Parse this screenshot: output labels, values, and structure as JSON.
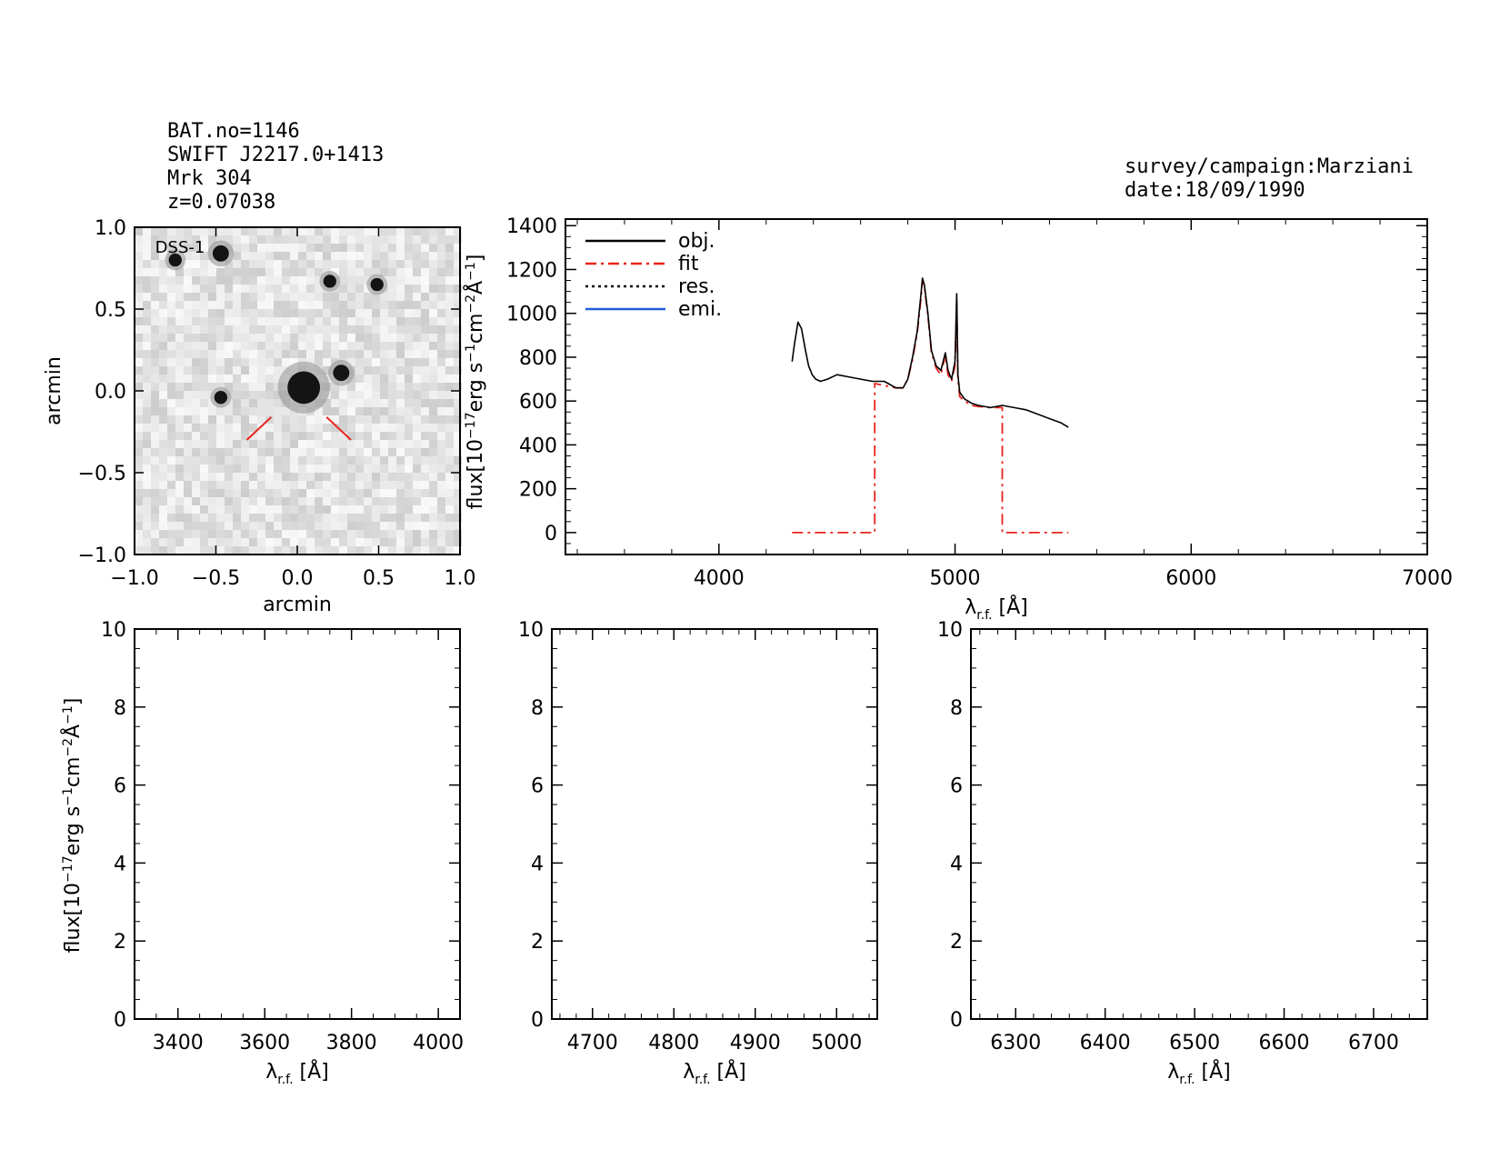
{
  "header": {
    "lines": [
      "BAT.no=1146",
      "SWIFT J2217.0+1413",
      "Mrk 304",
      "z=0.07038"
    ],
    "survey": "survey/campaign:Marziani",
    "date": "date:18/09/1990"
  },
  "colors": {
    "obj": "#000000",
    "fit": "#e8241c",
    "res": "#000000",
    "emi": "#1f5fd6",
    "marker": "#e8241c"
  },
  "chart_data": [
    {
      "type": "image",
      "label": "DSS-1",
      "xlabel": "arcmin",
      "ylabel": "arcmin",
      "xlim": [
        -1.0,
        1.0
      ],
      "ylim": [
        -1.0,
        1.0
      ],
      "xticks": [
        "−1.0",
        "−0.5",
        "0.0",
        "0.5",
        "1.0"
      ],
      "yticks": [
        "−1.0",
        "−0.5",
        "0.0",
        "0.5",
        "1.0"
      ],
      "sources": [
        {
          "x": 0.04,
          "y": 0.02,
          "r": 0.1
        },
        {
          "x": 0.27,
          "y": 0.11,
          "r": 0.05
        },
        {
          "x": -0.47,
          "y": 0.84,
          "r": 0.05
        },
        {
          "x": -0.75,
          "y": 0.8,
          "r": 0.04
        },
        {
          "x": 0.2,
          "y": 0.67,
          "r": 0.04
        },
        {
          "x": 0.49,
          "y": 0.65,
          "r": 0.04
        },
        {
          "x": -0.47,
          "y": -0.04,
          "r": 0.04
        }
      ]
    },
    {
      "type": "line",
      "xlabel": "λr.f. [Å]",
      "ylabel": "flux[10^-17 erg s^-1 cm^-2 Å^-1]",
      "xlim": [
        3350,
        7000
      ],
      "ylim": [
        -100,
        1430
      ],
      "xticks": [
        "4000",
        "5000",
        "6000",
        "7000"
      ],
      "yticks": [
        "0",
        "200",
        "400",
        "600",
        "800",
        "1000",
        "1200",
        "1400"
      ],
      "legend": [
        "obj.",
        "fit",
        "res.",
        "emi."
      ],
      "legend_position": "top-left",
      "series": [
        {
          "name": "obj.",
          "x": [
            4310,
            4320,
            4335,
            4350,
            4365,
            4380,
            4395,
            4410,
            4430,
            4460,
            4500,
            4550,
            4600,
            4650,
            4700,
            4750,
            4780,
            4800,
            4820,
            4840,
            4855,
            4862,
            4870,
            4885,
            4900,
            4920,
            4940,
            4959,
            4970,
            4985,
            5000,
            5007,
            5012,
            5020,
            5040,
            5070,
            5100,
            5150,
            5200,
            5250,
            5300,
            5350,
            5400,
            5450,
            5480
          ],
          "y": [
            780,
            860,
            960,
            930,
            840,
            760,
            720,
            700,
            690,
            700,
            720,
            710,
            700,
            690,
            690,
            660,
            660,
            700,
            800,
            920,
            1080,
            1160,
            1130,
            1000,
            830,
            760,
            740,
            820,
            740,
            700,
            780,
            1090,
            720,
            640,
            610,
            590,
            580,
            570,
            580,
            570,
            560,
            540,
            520,
            500,
            480
          ]
        },
        {
          "name": "fit",
          "x": [
            4310,
            4660,
            4660,
            4750,
            4780,
            4800,
            4820,
            4840,
            4855,
            4862,
            4870,
            4885,
            4900,
            4920,
            4940,
            4959,
            4970,
            4985,
            5000,
            5007,
            5012,
            5020,
            5040,
            5070,
            5100,
            5150,
            5200,
            5200,
            5480
          ],
          "y": [
            0,
            0,
            680,
            660,
            660,
            700,
            790,
            910,
            1060,
            1150,
            1120,
            990,
            820,
            750,
            720,
            810,
            720,
            690,
            760,
            1050,
            700,
            620,
            600,
            580,
            575,
            570,
            570,
            0,
            0
          ]
        },
        {
          "name": "res.",
          "x": [],
          "y": []
        },
        {
          "name": "emi.",
          "x": [],
          "y": []
        }
      ]
    },
    {
      "type": "line",
      "xlabel": "λr.f. [Å]",
      "ylabel": "flux[10^-17 erg s^-1 cm^-2 Å^-1]",
      "xlim": [
        3300,
        4050
      ],
      "ylim": [
        0,
        10
      ],
      "xticks": [
        "3400",
        "3600",
        "3800",
        "4000"
      ],
      "yticks": [
        "0",
        "2",
        "4",
        "6",
        "8",
        "10"
      ]
    },
    {
      "type": "line",
      "xlabel": "λr.f. [Å]",
      "xlim": [
        4650,
        5050
      ],
      "ylim": [
        0,
        10
      ],
      "xticks": [
        "4700",
        "4800",
        "4900",
        "5000"
      ],
      "yticks": [
        "0",
        "2",
        "4",
        "6",
        "8",
        "10"
      ]
    },
    {
      "type": "line",
      "xlabel": "λr.f. [Å]",
      "xlim": [
        6250,
        6760
      ],
      "ylim": [
        0,
        10
      ],
      "xticks": [
        "6300",
        "6400",
        "6500",
        "6600",
        "6700"
      ],
      "yticks": [
        "0",
        "2",
        "4",
        "6",
        "8",
        "10"
      ]
    }
  ]
}
